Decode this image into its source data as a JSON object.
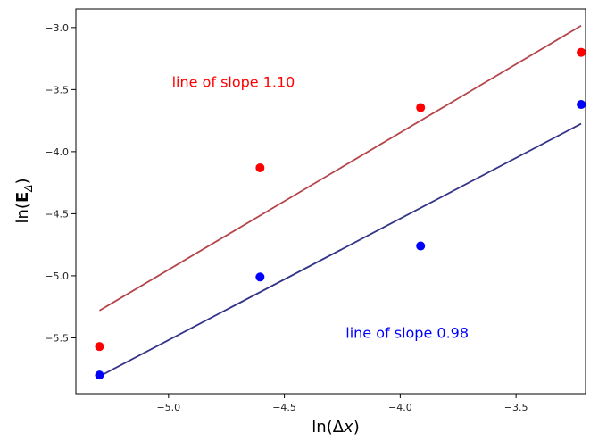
{
  "chart_data": {
    "type": "scatter",
    "xlabel": "ln(Δx)",
    "ylabel": "ln(E_Δ)",
    "xlim": [
      -5.4,
      -3.2
    ],
    "ylim": [
      -5.95,
      -2.85
    ],
    "xticks": [
      -5.0,
      -4.5,
      -4.0,
      -3.5
    ],
    "xtick_labels": [
      "−5.0",
      "−4.5",
      "−4.0",
      "−3.5"
    ],
    "yticks": [
      -3.0,
      -3.5,
      -4.0,
      -4.5,
      -5.0,
      -5.5
    ],
    "ytick_labels": [
      "−3.0",
      "−3.5",
      "−4.0",
      "−4.5",
      "−5.0",
      "−5.5"
    ],
    "grid": false,
    "series": [
      {
        "color": "#ff0000",
        "points": [
          {
            "x": -5.298,
            "y": -5.57
          },
          {
            "x": -4.605,
            "y": -4.13
          },
          {
            "x": -3.912,
            "y": -3.645
          },
          {
            "x": -3.219,
            "y": -3.2
          }
        ],
        "fit": {
          "color": "#b5454a",
          "x": [
            -5.298,
            -3.219
          ],
          "y": [
            -5.28,
            -2.985
          ]
        }
      },
      {
        "color": "#0000ff",
        "points": [
          {
            "x": -5.298,
            "y": -5.8
          },
          {
            "x": -4.605,
            "y": -5.01
          },
          {
            "x": -3.912,
            "y": -4.76
          },
          {
            "x": -3.219,
            "y": -3.62
          }
        ],
        "fit": {
          "color": "#333388",
          "x": [
            -5.298,
            -3.219
          ],
          "y": [
            -5.81,
            -3.775
          ]
        }
      }
    ],
    "annotations": [
      {
        "text": "line of slope 1.10",
        "color": "#ff0000",
        "x": -4.72,
        "y": -3.48
      },
      {
        "text": "line of slope 0.98",
        "color": "#0000ff",
        "x": -3.97,
        "y": -5.5
      }
    ]
  }
}
